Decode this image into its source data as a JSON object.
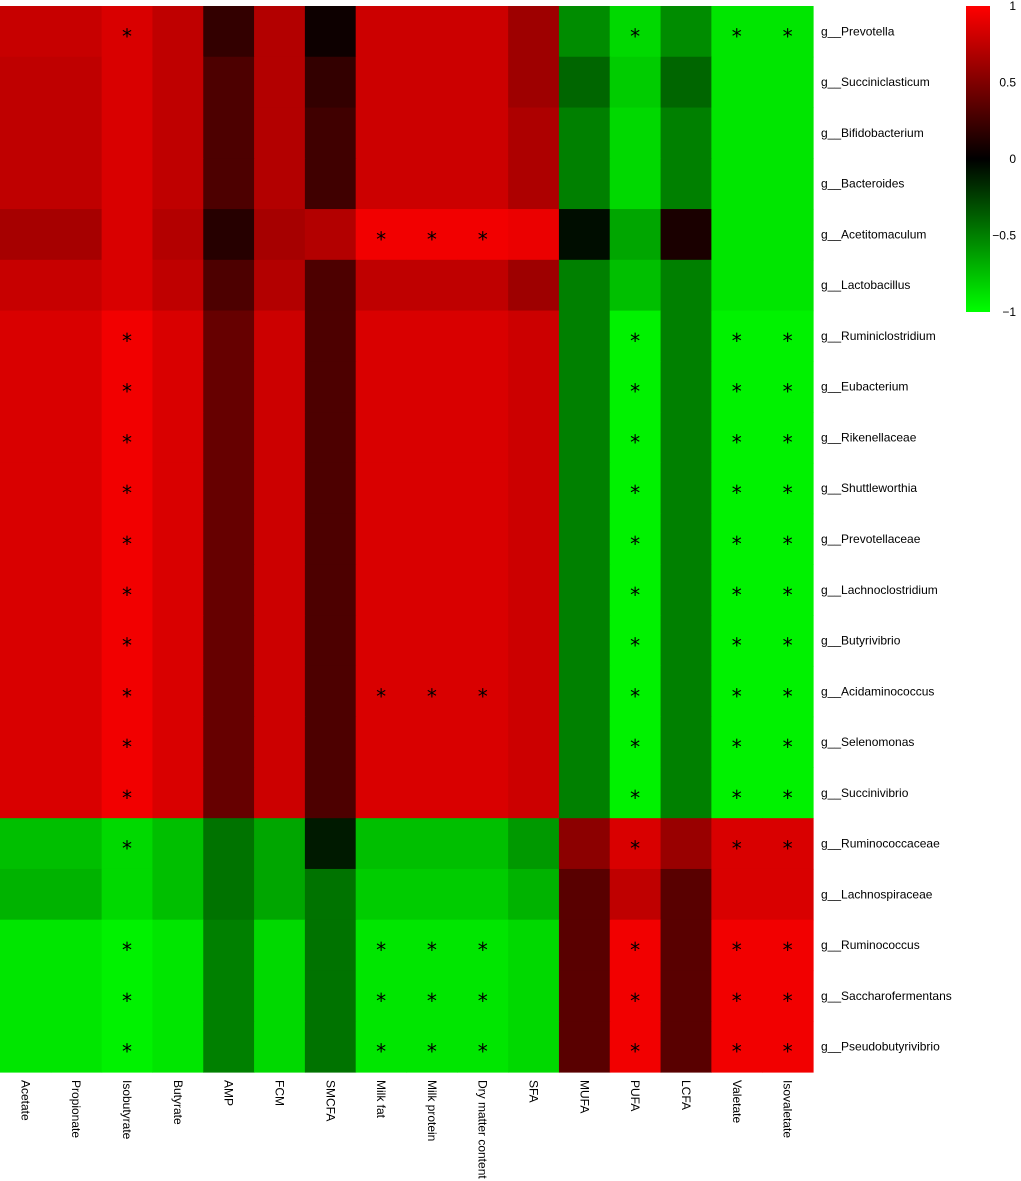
{
  "chart_data": {
    "type": "heatmap",
    "title": "",
    "columns": [
      "Acetate",
      "Propionate",
      "Isobutyrate",
      "Butyrate",
      "AMP",
      "FCM",
      "SMCFA",
      "Milk fat",
      "Milk protein",
      "Dry matter content",
      "SFA",
      "MUFA",
      "PUFA",
      "LCFA",
      "Valetate",
      "Isovaletate"
    ],
    "rows": [
      "g__Prevotella",
      "g__Succiniclasticum",
      "g__Bifidobacterium",
      "g__Bacteroides",
      "g__Acetitomaculum",
      "g__Lactobacillus",
      "g__Ruminiclostridium",
      "g__Eubacterium",
      "g__Rikenellaceae",
      "g__Shuttleworthia",
      "g__Prevotellaceae",
      "g__Lachnoclostridium",
      "g__Butyrivibrio",
      "g__Acidaminococcus",
      "g__Selenomonas",
      "g__Succinivibrio",
      "g__Ruminococcaceae",
      "g__Lachnospiraceae",
      "g__Ruminococcus",
      "g__Saccharofermentans",
      "g__Pseudobutyrivibrio"
    ],
    "values": [
      [
        0.78,
        0.78,
        0.85,
        0.75,
        0.2,
        0.7,
        0.05,
        0.8,
        0.8,
        0.8,
        0.62,
        -0.55,
        -0.85,
        -0.55,
        -0.9,
        -0.9
      ],
      [
        0.75,
        0.75,
        0.85,
        0.75,
        0.3,
        0.7,
        0.2,
        0.8,
        0.8,
        0.8,
        0.62,
        -0.4,
        -0.8,
        -0.4,
        -0.9,
        -0.9
      ],
      [
        0.75,
        0.75,
        0.85,
        0.75,
        0.3,
        0.7,
        0.25,
        0.8,
        0.8,
        0.8,
        0.68,
        -0.5,
        -0.85,
        -0.5,
        -0.9,
        -0.9
      ],
      [
        0.75,
        0.75,
        0.85,
        0.75,
        0.3,
        0.7,
        0.25,
        0.8,
        0.8,
        0.8,
        0.68,
        -0.5,
        -0.85,
        -0.5,
        -0.9,
        -0.9
      ],
      [
        0.65,
        0.65,
        0.85,
        0.7,
        0.15,
        0.65,
        0.7,
        0.95,
        0.95,
        0.95,
        0.92,
        -0.05,
        -0.65,
        0.1,
        -0.9,
        -0.9
      ],
      [
        0.78,
        0.78,
        0.85,
        0.75,
        0.3,
        0.7,
        0.3,
        0.75,
        0.75,
        0.75,
        0.62,
        -0.5,
        -0.75,
        -0.5,
        -0.9,
        -0.9
      ],
      [
        0.85,
        0.85,
        0.95,
        0.85,
        0.4,
        0.8,
        0.3,
        0.85,
        0.85,
        0.85,
        0.8,
        -0.5,
        -0.95,
        -0.5,
        -0.95,
        -0.95
      ],
      [
        0.85,
        0.85,
        0.95,
        0.85,
        0.4,
        0.8,
        0.3,
        0.85,
        0.85,
        0.85,
        0.8,
        -0.5,
        -0.95,
        -0.5,
        -0.95,
        -0.95
      ],
      [
        0.85,
        0.85,
        0.95,
        0.85,
        0.4,
        0.8,
        0.3,
        0.85,
        0.85,
        0.85,
        0.8,
        -0.5,
        -0.95,
        -0.5,
        -0.95,
        -0.95
      ],
      [
        0.85,
        0.85,
        0.95,
        0.85,
        0.4,
        0.8,
        0.3,
        0.85,
        0.85,
        0.85,
        0.8,
        -0.5,
        -0.95,
        -0.5,
        -0.95,
        -0.95
      ],
      [
        0.85,
        0.85,
        0.95,
        0.85,
        0.4,
        0.8,
        0.3,
        0.85,
        0.85,
        0.85,
        0.8,
        -0.5,
        -0.95,
        -0.5,
        -0.95,
        -0.95
      ],
      [
        0.85,
        0.85,
        0.95,
        0.85,
        0.4,
        0.8,
        0.3,
        0.85,
        0.85,
        0.85,
        0.8,
        -0.5,
        -0.95,
        -0.5,
        -0.95,
        -0.95
      ],
      [
        0.85,
        0.85,
        0.95,
        0.85,
        0.4,
        0.8,
        0.3,
        0.85,
        0.85,
        0.85,
        0.8,
        -0.5,
        -0.95,
        -0.5,
        -0.95,
        -0.95
      ],
      [
        0.85,
        0.85,
        0.95,
        0.85,
        0.4,
        0.8,
        0.3,
        0.85,
        0.85,
        0.85,
        0.8,
        -0.5,
        -0.95,
        -0.5,
        -0.95,
        -0.95
      ],
      [
        0.85,
        0.85,
        0.95,
        0.85,
        0.4,
        0.8,
        0.3,
        0.85,
        0.85,
        0.85,
        0.8,
        -0.5,
        -0.95,
        -0.5,
        -0.95,
        -0.95
      ],
      [
        0.85,
        0.85,
        0.95,
        0.85,
        0.4,
        0.8,
        0.3,
        0.85,
        0.85,
        0.85,
        0.8,
        -0.5,
        -0.95,
        -0.5,
        -0.95,
        -0.95
      ],
      [
        -0.75,
        -0.75,
        -0.85,
        -0.75,
        -0.45,
        -0.65,
        -0.1,
        -0.75,
        -0.75,
        -0.75,
        -0.6,
        0.55,
        0.85,
        0.6,
        0.85,
        0.85
      ],
      [
        -0.7,
        -0.7,
        -0.85,
        -0.75,
        -0.45,
        -0.65,
        -0.45,
        -0.8,
        -0.8,
        -0.8,
        -0.7,
        0.35,
        0.75,
        0.35,
        0.85,
        0.85
      ],
      [
        -0.9,
        -0.9,
        -0.95,
        -0.9,
        -0.5,
        -0.85,
        -0.45,
        -0.9,
        -0.9,
        -0.9,
        -0.85,
        0.35,
        0.95,
        0.35,
        0.95,
        0.95
      ],
      [
        -0.9,
        -0.9,
        -0.95,
        -0.9,
        -0.5,
        -0.85,
        -0.45,
        -0.9,
        -0.9,
        -0.9,
        -0.85,
        0.35,
        0.95,
        0.35,
        0.95,
        0.95
      ],
      [
        -0.9,
        -0.9,
        -0.95,
        -0.9,
        -0.5,
        -0.85,
        -0.45,
        -0.9,
        -0.9,
        -0.9,
        -0.85,
        0.35,
        0.95,
        0.35,
        0.95,
        0.95
      ]
    ],
    "significance": [
      [
        2,
        12,
        14,
        15
      ],
      [],
      [],
      [],
      [
        7,
        8,
        9
      ],
      [],
      [
        2,
        12,
        14,
        15
      ],
      [
        2,
        12,
        14,
        15
      ],
      [
        2,
        12,
        14,
        15
      ],
      [
        2,
        12,
        14,
        15
      ],
      [
        2,
        12,
        14,
        15
      ],
      [
        2,
        12,
        14,
        15
      ],
      [
        2,
        12,
        14,
        15
      ],
      [
        2,
        7,
        8,
        9,
        12,
        14,
        15
      ],
      [
        2,
        12,
        14,
        15
      ],
      [
        2,
        12,
        14,
        15
      ],
      [
        2,
        12,
        14,
        15
      ],
      [],
      [
        2,
        7,
        8,
        9,
        12,
        14,
        15
      ],
      [
        2,
        7,
        8,
        9,
        12,
        14,
        15
      ],
      [
        2,
        7,
        8,
        9,
        12,
        14,
        15
      ]
    ],
    "significance_mark": "*",
    "colorbar": {
      "range": [
        -1,
        1
      ],
      "ticks": [
        "1",
        "0.5",
        "0",
        "−0.5",
        "−1"
      ],
      "tick_values": [
        1,
        0.5,
        0,
        -0.5,
        -1
      ],
      "colors": {
        "low": "#00ff00",
        "mid": "#000000",
        "high": "#ff0000"
      }
    },
    "grid": false,
    "legend": "top-right"
  }
}
